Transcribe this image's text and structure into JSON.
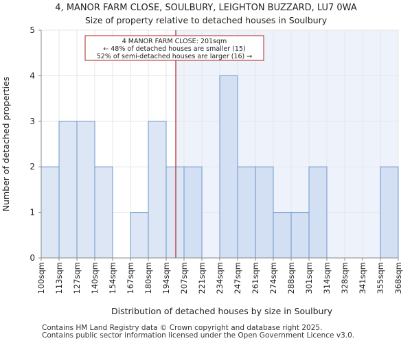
{
  "title": "4, MANOR FARM CLOSE, SOULBURY, LEIGHTON BUZZARD, LU7 0WA",
  "subtitle": "Size of property relative to detached houses in Soulbury",
  "footer": {
    "line1": "Contains HM Land Registry data © Crown copyright and database right 2025.",
    "line2": "Contains public sector information licensed under the Open Government Licence v3.0."
  },
  "colors": {
    "bar_fill": "#dce6f5",
    "bar_fill_right": "#d3dff2",
    "bar_stroke": "#6d96cc",
    "shade": "#eef2fb",
    "marker": "#b22222",
    "grid": "#e6e6e6",
    "axis": "#888888"
  },
  "chart_data": {
    "type": "bar",
    "title": "4, MANOR FARM CLOSE, SOULBURY, LEIGHTON BUZZARD, LU7 0WA",
    "subtitle": "Size of property relative to detached houses in Soulbury",
    "xlabel": "Distribution of detached houses by size in Soulbury",
    "ylabel": "Number of detached properties",
    "ylim": [
      0,
      5
    ],
    "yticks": [
      0,
      1,
      2,
      3,
      4,
      5
    ],
    "grid": true,
    "bin_edges": [
      "100sqm",
      "113sqm",
      "127sqm",
      "140sqm",
      "154sqm",
      "167sqm",
      "180sqm",
      "194sqm",
      "207sqm",
      "221sqm",
      "234sqm",
      "247sqm",
      "261sqm",
      "274sqm",
      "288sqm",
      "301sqm",
      "314sqm",
      "328sqm",
      "341sqm",
      "355sqm",
      "368sqm"
    ],
    "values": [
      2,
      3,
      3,
      2,
      0,
      1,
      3,
      2,
      2,
      0,
      4,
      2,
      2,
      1,
      1,
      2,
      0,
      0,
      0,
      2
    ],
    "marker": {
      "value_sqm": 201,
      "label_line1": "4 MANOR FARM CLOSE: 201sqm",
      "label_line2": "← 48% of detached houses are smaller (15)",
      "label_line3": "52% of semi-detached houses are larger (16) →"
    }
  }
}
